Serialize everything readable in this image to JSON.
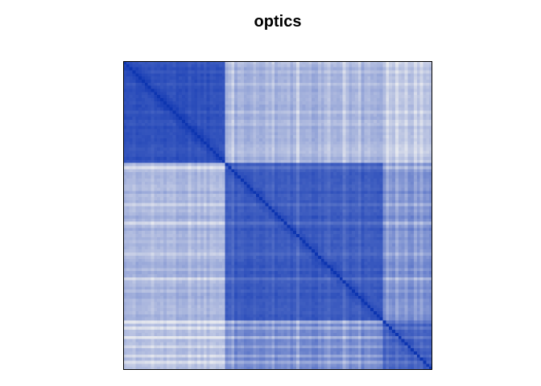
{
  "chart_data": {
    "type": "heatmap",
    "title": "optics",
    "xlabel": "",
    "ylabel": "",
    "description_value_meaning": "",
    "n": 100,
    "colors": {
      "low": "#e6e8ee",
      "high": "#1a3fb6",
      "diagonal": "#0d35b0"
    },
    "clusters": [
      {
        "start": 0,
        "end": 33
      },
      {
        "start": 33,
        "end": 84
      },
      {
        "start": 84,
        "end": 100
      }
    ],
    "block_similarity": [
      [
        0.88,
        0.3,
        0.22
      ],
      [
        0.3,
        0.84,
        0.55
      ],
      [
        0.22,
        0.55,
        0.8
      ]
    ],
    "light_columns": [
      35,
      48,
      56,
      66,
      71,
      76,
      85,
      88,
      91,
      94,
      96
    ],
    "light_rows": [
      34,
      46,
      52,
      62,
      70,
      84,
      86,
      89,
      92,
      95,
      97
    ]
  }
}
